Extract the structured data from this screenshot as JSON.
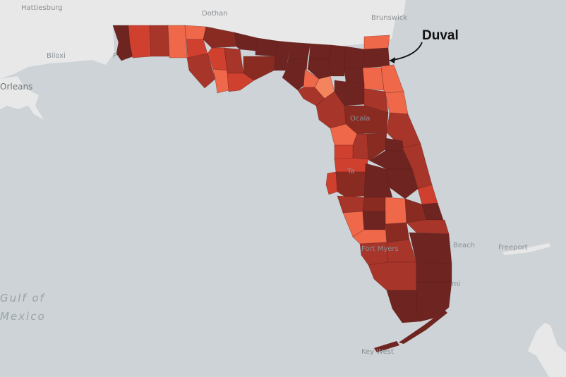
{
  "map": {
    "water_labels": {
      "gulf_line1": "Gulf of",
      "gulf_line2": "Mexico"
    },
    "place_labels": {
      "hattiesburg": "Hattiesburg",
      "dothan": "Dothan",
      "brunswick": "Brunswick",
      "biloxi": "Biloxi",
      "orleans": "Orleans",
      "ocala": "Ocala",
      "fort_myers": "Fort Myers",
      "west_palm_beach": "Beach",
      "miami": "mi",
      "freeport": "Freeport",
      "key_west": "Key West",
      "pensacola": "P",
      "tampa": "Ta"
    },
    "callout": {
      "label": "Duval",
      "target": "Duval County"
    },
    "colors": {
      "water": "#cdd3d6",
      "land": "#e8e8e8",
      "choropleth_high": "#6e2420",
      "choropleth_mid_high": "#8a2b22",
      "choropleth_mid": "#a7352a",
      "choropleth_mid_low": "#d0402f",
      "choropleth_low": "#f0684a",
      "choropleth_lowest": "#f4845d"
    }
  }
}
